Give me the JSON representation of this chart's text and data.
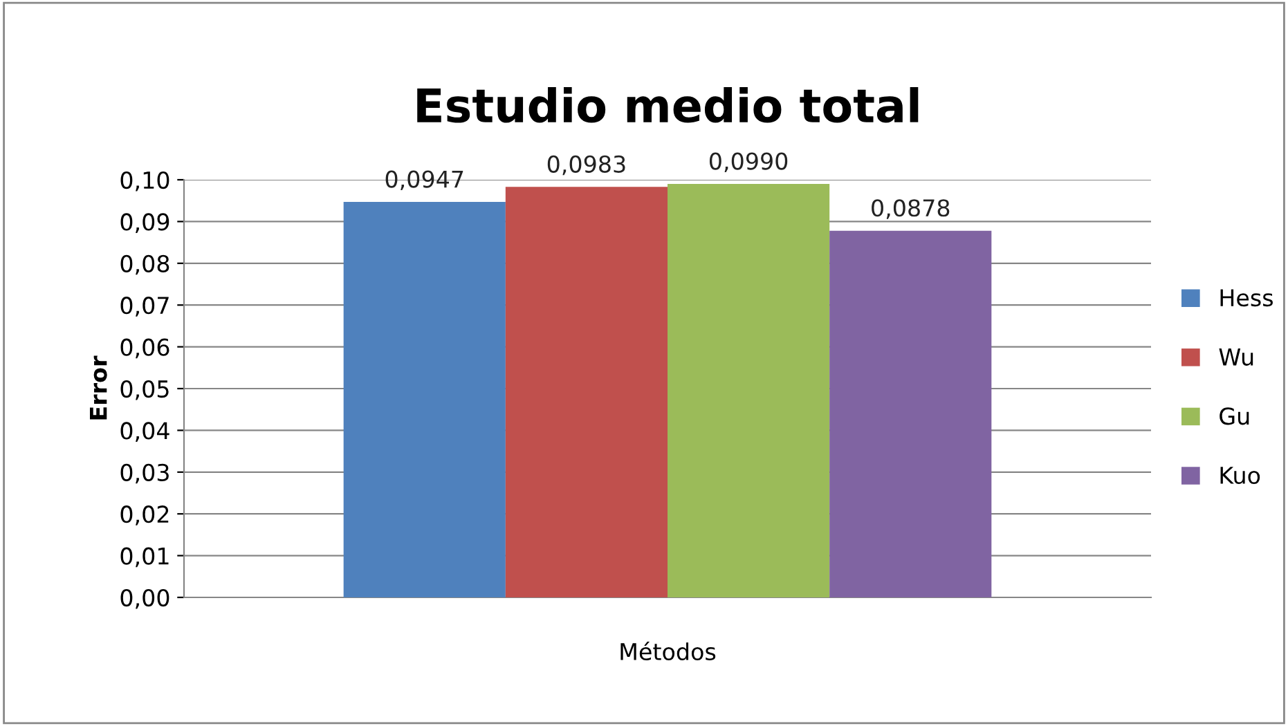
{
  "chart_data": {
    "type": "bar",
    "title": "Estudio medio total",
    "xlabel": "Métodos",
    "ylabel": "Error",
    "categories": [
      null
    ],
    "series": [
      {
        "name": "Hess",
        "color": "#4f81bd",
        "values": [
          0.0947
        ]
      },
      {
        "name": "Wu",
        "color": "#c0504d",
        "values": [
          0.0983
        ]
      },
      {
        "name": "Gu",
        "color": "#9bbb59",
        "values": [
          0.099
        ]
      },
      {
        "name": "Kuo",
        "color": "#8064a2",
        "values": [
          0.0878
        ]
      }
    ],
    "value_labels": [
      [
        "0,0947"
      ],
      [
        "0,0983"
      ],
      [
        "0,0990"
      ],
      [
        "0,0878"
      ]
    ],
    "ylim": [
      0,
      0.1
    ],
    "yticks": [
      {
        "value": 0,
        "label": "0,00"
      },
      {
        "value": 0.01,
        "label": "0,01"
      },
      {
        "value": 0.02,
        "label": "0,02"
      },
      {
        "value": 0.03,
        "label": "0,03"
      },
      {
        "value": 0.04,
        "label": "0,04"
      },
      {
        "value": 0.05,
        "label": "0,05"
      },
      {
        "value": 0.06,
        "label": "0,06"
      },
      {
        "value": 0.07,
        "label": "0,07"
      },
      {
        "value": 0.08,
        "label": "0,08"
      },
      {
        "value": 0.09,
        "label": "0,09"
      },
      {
        "value": 0.1,
        "label": "0,10"
      }
    ],
    "grid": "y",
    "legend": "right"
  }
}
